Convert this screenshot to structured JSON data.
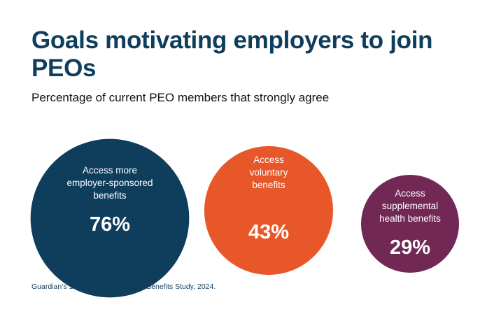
{
  "chart_data": {
    "type": "bubble",
    "title": "Goals motivating employers to join PEOs",
    "subtitle": "Percentage of current PEO members that strongly agree",
    "categories": [
      "Access more employer-sponsored benefits",
      "Access voluntary benefits",
      "Access supplemental health benefits"
    ],
    "label_lines": [
      [
        "Access more",
        "employer-sponsored",
        "benefits"
      ],
      [
        "Access",
        "voluntary",
        "benefits"
      ],
      [
        "Access",
        "supplemental",
        "health benefits"
      ]
    ],
    "values": [
      76,
      43,
      29
    ],
    "value_labels": [
      "76%",
      "43%",
      "29%"
    ],
    "colors": [
      "#0f3d5c",
      "#e8572a",
      "#722855"
    ],
    "source": "Guardian’s 13th Annual Workplace Benefits Study, 2024."
  }
}
